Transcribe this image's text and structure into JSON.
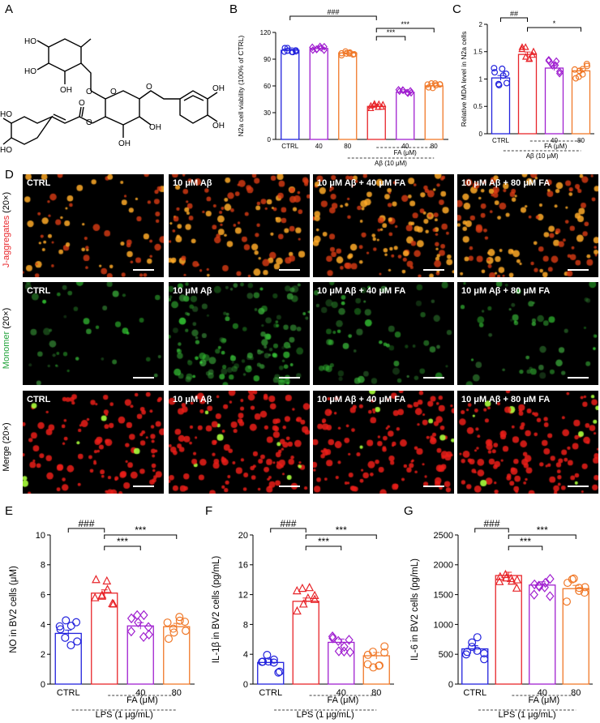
{
  "panel_labels": [
    "A",
    "B",
    "C",
    "D",
    "E",
    "F",
    "G"
  ],
  "panel_D": {
    "row_labels": [
      {
        "stain": "J-aggregates",
        "mag": " (20×)",
        "color": "#e8252a"
      },
      {
        "stain": "Monomer",
        "mag": " (20×)",
        "color": "#20a33a"
      },
      {
        "stain": "Merge",
        "mag": " (20×)",
        "color": "#000000"
      }
    ],
    "column_captions": [
      "CTRL",
      "10 μM Aβ",
      "10 μM Aβ + 40 μM FA",
      "10 μM Aβ + 80 μM FA"
    ]
  },
  "chart_data": [
    {
      "id": "B",
      "type": "bar",
      "categories": [
        "CTRL",
        "40",
        "80",
        "",
        "40",
        "80"
      ],
      "values": [
        100,
        102,
        97,
        37,
        53,
        60
      ],
      "ylabel": "N2a cell viability (100% of CTRL)",
      "ylim": [
        0,
        120
      ],
      "yticks": [
        0,
        30,
        60,
        90,
        120
      ],
      "colors": [
        "#2222dd",
        "#a020d0",
        "#f07828",
        "#e8252a",
        "#a020d0",
        "#f07828"
      ],
      "markers": [
        "circle",
        "diamond",
        "circle",
        "triangle",
        "diamond",
        "circle"
      ],
      "group_labels": [
        "FA (μM)",
        "Aβ (10 μM)"
      ],
      "significance": [
        "###",
        "***",
        "***"
      ]
    },
    {
      "id": "C",
      "type": "bar",
      "categories": [
        "CTRL",
        "",
        "40",
        "80"
      ],
      "values": [
        1.02,
        1.45,
        1.2,
        1.15
      ],
      "ylabel": "Relative MDA level in N2a cells",
      "ylim": [
        0,
        2.0
      ],
      "yticks": [
        0,
        0.5,
        1.0,
        1.5,
        2.0
      ],
      "colors": [
        "#2222dd",
        "#e8252a",
        "#a020d0",
        "#f07828"
      ],
      "markers": [
        "circle",
        "triangle",
        "diamond",
        "circle"
      ],
      "group_labels": [
        "FA (μM)",
        "Aβ (10 μM)"
      ],
      "significance": [
        "##",
        "*"
      ]
    },
    {
      "id": "E",
      "type": "bar",
      "categories": [
        "CTRL",
        "",
        "40",
        "80"
      ],
      "values": [
        3.4,
        6.1,
        3.9,
        3.85
      ],
      "ylabel": "NO in BV2 cells (μM)",
      "ylim": [
        0,
        10
      ],
      "yticks": [
        0,
        2,
        4,
        6,
        8,
        10
      ],
      "colors": [
        "#2222dd",
        "#e8252a",
        "#a020d0",
        "#f07828"
      ],
      "markers": [
        "circle",
        "triangle",
        "diamond",
        "circle"
      ],
      "group_labels": [
        "FA (μM)",
        "LPS (1 μg/mL)"
      ],
      "significance": [
        "###",
        "***",
        "***"
      ]
    },
    {
      "id": "F",
      "type": "bar",
      "categories": [
        "CTRL",
        "",
        "40",
        "80"
      ],
      "values": [
        2.9,
        11.1,
        5.6,
        3.8
      ],
      "ylabel": "IL-1β in BV2 cells (pg/mL)",
      "ylim": [
        0,
        20
      ],
      "yticks": [
        0,
        4,
        8,
        12,
        16,
        20
      ],
      "colors": [
        "#2222dd",
        "#e8252a",
        "#a020d0",
        "#f07828"
      ],
      "markers": [
        "circle",
        "triangle",
        "diamond",
        "circle"
      ],
      "group_labels": [
        "FA (μM)",
        "LPS (1 μg/mL)"
      ],
      "significance": [
        "###",
        "***",
        "***"
      ]
    },
    {
      "id": "G",
      "type": "bar",
      "categories": [
        "CTRL",
        "",
        "40",
        "80"
      ],
      "values": [
        590,
        1820,
        1660,
        1600
      ],
      "ylabel": "IL-6 in BV2 cells (pg/mL)",
      "ylim": [
        0,
        2500
      ],
      "yticks": [
        0,
        500,
        1000,
        1500,
        2000,
        2500
      ],
      "colors": [
        "#2222dd",
        "#e8252a",
        "#a020d0",
        "#f07828"
      ],
      "markers": [
        "circle",
        "triangle",
        "diamond",
        "circle"
      ],
      "group_labels": [
        "FA (μM)",
        "LPS (1 μg/mL)"
      ],
      "significance": [
        "###",
        "***",
        "***"
      ]
    }
  ]
}
